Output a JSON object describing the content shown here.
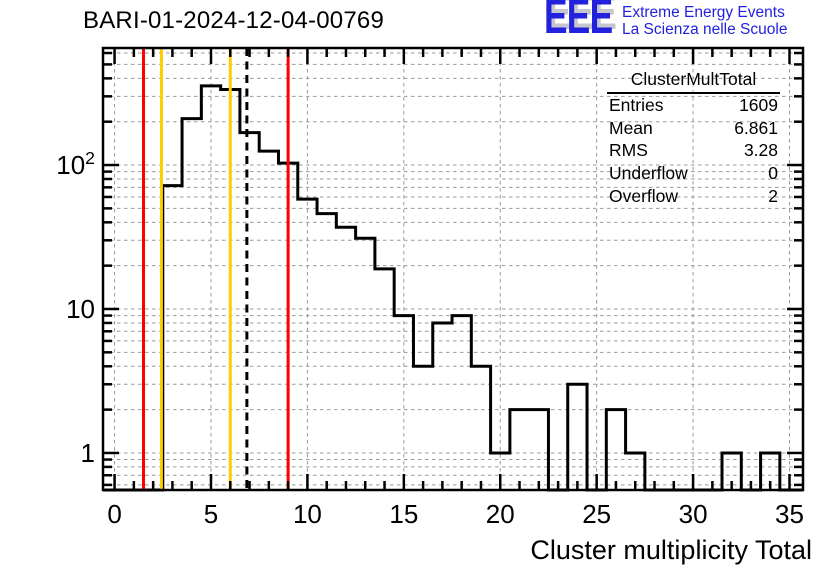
{
  "header": {
    "title": "BARI-01-2024-12-04-00769"
  },
  "logo": {
    "acronym": "EEE",
    "line1": "Extreme Energy Events",
    "line2": "La Scienza nelle Scuole",
    "color": "#2222dd",
    "shadow_color": "#c6c6ce"
  },
  "stats": {
    "title": "ClusterMultTotal",
    "rows": [
      {
        "label": "Entries",
        "value": "1609"
      },
      {
        "label": "Mean",
        "value": "6.861"
      },
      {
        "label": "RMS",
        "value": "3.28"
      },
      {
        "label": "Underflow",
        "value": "0"
      },
      {
        "label": "Overflow",
        "value": "2"
      }
    ]
  },
  "chart_data": {
    "type": "bar",
    "subtype": "step-histogram",
    "name": "ClusterMultTotal",
    "title": "BARI-01-2024-12-04-00769",
    "xlabel": "Cluster multiplicity Total",
    "ylabel": "",
    "y_scale": "log",
    "grid": "on",
    "bin_width": 1,
    "bin_centers": [
      0,
      1,
      2,
      3,
      4,
      5,
      6,
      7,
      8,
      9,
      10,
      11,
      12,
      13,
      14,
      15,
      16,
      17,
      18,
      19,
      20,
      21,
      22,
      23,
      24,
      25,
      26,
      27,
      28,
      29,
      30,
      31,
      32,
      33,
      34,
      35
    ],
    "counts": [
      0,
      0,
      0,
      72,
      210,
      355,
      335,
      168,
      125,
      103,
      58,
      46,
      37,
      31,
      19,
      9,
      4,
      8,
      9,
      4,
      1,
      2,
      2,
      0,
      3,
      0,
      2,
      1,
      0,
      0,
      0,
      0,
      1,
      0,
      1,
      0
    ],
    "xlim": [
      -0.6,
      35.7
    ],
    "ylim": [
      0.553,
      650
    ],
    "x_major_ticks": [
      0,
      5,
      10,
      15,
      20,
      25,
      30,
      35
    ],
    "x_tick_labels": [
      "0",
      "5",
      "10",
      "15",
      "20",
      "25",
      "30",
      "35"
    ],
    "y_major_ticks": [
      1,
      10,
      100
    ],
    "y_tick_labels": [
      "1",
      "10",
      "10^2"
    ],
    "y_minor_ticks": [
      0.6,
      0.7,
      0.8,
      0.9,
      2,
      3,
      4,
      5,
      6,
      7,
      8,
      9,
      20,
      30,
      40,
      50,
      60,
      70,
      80,
      90,
      200,
      300,
      400,
      500,
      600
    ],
    "line_color": "#000000",
    "grid_color": "#999999",
    "marker_lines": [
      {
        "name": "red-threshold-low",
        "x": 1.5,
        "color": "#ff0000",
        "style": "solid"
      },
      {
        "name": "yellow-threshold-low",
        "x": 2.43,
        "color": "#ffcc00",
        "style": "solid"
      },
      {
        "name": "yellow-threshold-high",
        "x": 6.0,
        "color": "#ffcc00",
        "style": "solid"
      },
      {
        "name": "mean-line",
        "x": 6.861,
        "color": "#000000",
        "style": "dashed"
      },
      {
        "name": "red-threshold-high",
        "x": 9.0,
        "color": "#ff0000",
        "style": "solid"
      }
    ]
  }
}
